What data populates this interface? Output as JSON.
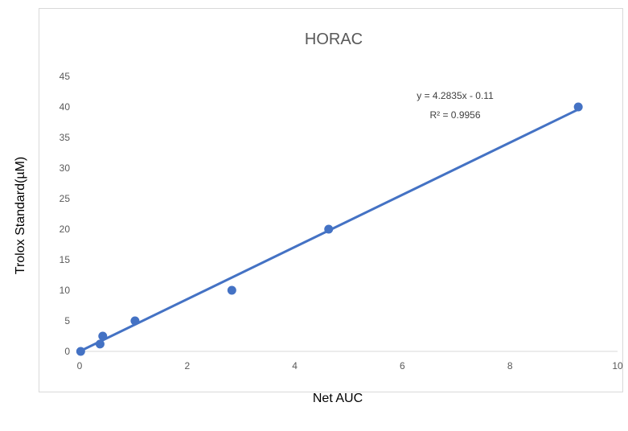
{
  "chart_data": {
    "type": "scatter",
    "title": "HORAC",
    "xlabel": "Net AUC",
    "ylabel": "Trolox Standard(µM)",
    "xlim": [
      0,
      10
    ],
    "ylim": [
      0,
      45
    ],
    "x_ticks": [
      "0",
      "2",
      "4",
      "6",
      "8",
      "10"
    ],
    "y_ticks": [
      "0",
      "5",
      "10",
      "15",
      "20",
      "25",
      "30",
      "35",
      "40",
      "45"
    ],
    "grid": false,
    "legend": "none",
    "series": [
      {
        "x": [
          0.02,
          0.38,
          0.43,
          1.03,
          2.83,
          4.63,
          9.27
        ],
        "y": [
          0,
          1.2,
          2.5,
          5,
          10,
          20,
          40
        ]
      }
    ],
    "trendline": {
      "slope": 4.2835,
      "intercept": -0.11,
      "x_range": [
        0,
        9.27
      ],
      "equation": "y = 4.2835x - 0.11",
      "r2_label": "R² = 0.9956"
    },
    "colors": {
      "series": "#4472c4",
      "axis": "#d9d9d9",
      "text": "#595959"
    }
  }
}
